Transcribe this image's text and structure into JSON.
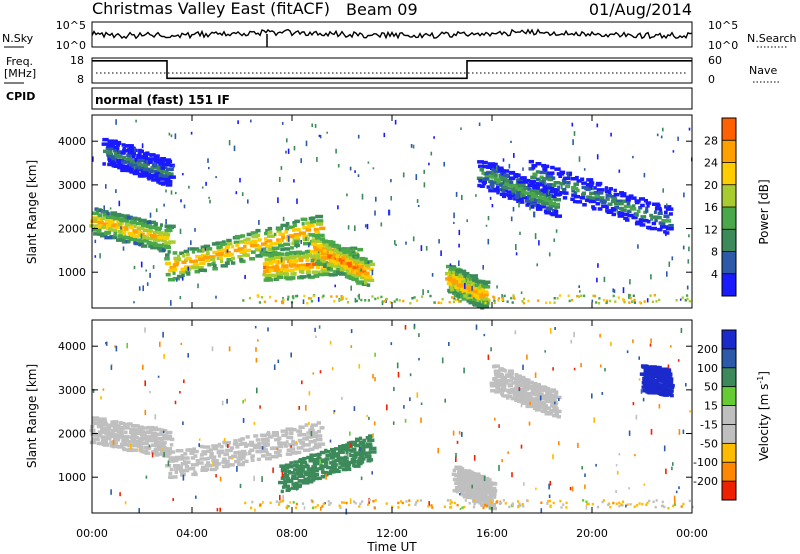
{
  "header": {
    "title": "Christmas Valley East (fitACF)",
    "beam": "Beam 09",
    "date": "01/Aug/2014"
  },
  "nsky_panel": {
    "left_label": "N.Sky",
    "right_label": "N.Search",
    "left_ticks": [
      "10^5",
      "10^0"
    ],
    "right_ticks": [
      "10^5",
      "10^0"
    ]
  },
  "freq_panel": {
    "left_label_line1": "Freq.",
    "left_label_line2": "[MHz]",
    "right_label": "Nave",
    "left_ticks": [
      "18",
      "8"
    ],
    "right_ticks": [
      "60",
      "0"
    ],
    "freq_series": {
      "x_hours": [
        0,
        3,
        3,
        15,
        15,
        24
      ],
      "mhz": [
        16.9,
        16.9,
        9.9,
        9.9,
        16.9,
        16.9
      ]
    }
  },
  "cpid_panel": {
    "label": "CPID",
    "mode": "normal (fast) 151 IF"
  },
  "chart_data": [
    {
      "type": "heatmap",
      "name": "power",
      "ylabel": "Slant Range [km]",
      "yticks": [
        1000,
        2000,
        3000,
        4000
      ],
      "ylim": [
        180,
        4600
      ],
      "xlim": [
        0,
        24
      ],
      "colorbar_label": "Power [dB]",
      "colorbar_ticks": [
        "4",
        "8",
        "12",
        "16",
        "20",
        "24",
        "28"
      ],
      "bands": [
        {
          "x": [
            0,
            3
          ],
          "y": [
            2200,
            1800
          ],
          "value": 24
        },
        {
          "x": [
            3,
            9
          ],
          "y": [
            1150,
            2050
          ],
          "value": 26
        },
        {
          "x": [
            6.8,
            10.5
          ],
          "y": [
            1150,
            1300
          ],
          "value": 28
        },
        {
          "x": [
            8.8,
            11
          ],
          "y": [
            1600,
            1000
          ],
          "value": 28
        },
        {
          "x": [
            14.2,
            15.6
          ],
          "y": [
            900,
            500
          ],
          "value": 26
        },
        {
          "x": [
            15.5,
            18.5
          ],
          "y": [
            3300,
            2600
          ],
          "value": 14
        },
        {
          "x": [
            17.5,
            23
          ],
          "y": [
            3300,
            2200
          ],
          "value": 12
        },
        {
          "x": [
            0.5,
            3
          ],
          "y": [
            3800,
            3300
          ],
          "value": 10
        }
      ]
    },
    {
      "type": "heatmap",
      "name": "velocity",
      "ylabel": "Slant Range [km]",
      "yticks": [
        1000,
        2000,
        3000,
        4000
      ],
      "ylim": [
        180,
        4600
      ],
      "xlim": [
        0,
        24
      ],
      "colorbar_label": "Velocity [m s^-1]",
      "colorbar_ticks": [
        "200",
        "100",
        "50",
        "15",
        "-15",
        "-50",
        "-100",
        "-200"
      ],
      "bands": [
        {
          "x": [
            0,
            3
          ],
          "y": [
            2100,
            1800
          ],
          "value": 0
        },
        {
          "x": [
            3,
            9
          ],
          "y": [
            1300,
            2000
          ],
          "value": 0
        },
        {
          "x": [
            7.5,
            11
          ],
          "y": [
            1000,
            1700
          ],
          "value": 40
        },
        {
          "x": [
            14.5,
            16
          ],
          "y": [
            1000,
            600
          ],
          "value": 0
        },
        {
          "x": [
            16,
            18.5
          ],
          "y": [
            3300,
            2700
          ],
          "value": 0
        },
        {
          "x": [
            22,
            23
          ],
          "y": [
            3300,
            3200
          ],
          "value": 220
        }
      ]
    }
  ],
  "x_axis": {
    "label": "Time UT",
    "ticks": [
      "00:00",
      "04:00",
      "08:00",
      "12:00",
      "16:00",
      "20:00",
      "00:00"
    ]
  }
}
